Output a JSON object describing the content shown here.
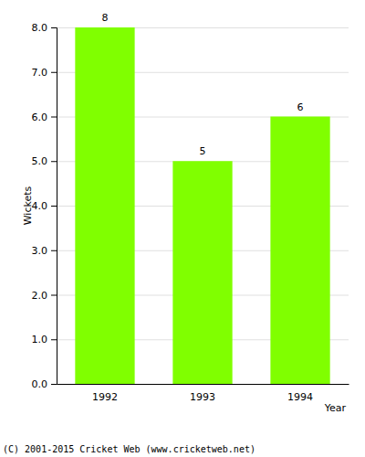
{
  "chart_data": {
    "type": "bar",
    "categories": [
      "1992",
      "1993",
      "1994"
    ],
    "values": [
      8,
      5,
      6
    ],
    "color": "#80ff00",
    "x_label": "Year",
    "y_label": "Wickets",
    "ylim": [
      0,
      8
    ],
    "yticks": [
      {
        "value": 0,
        "label": "0.0"
      },
      {
        "value": 1,
        "label": "1.0"
      },
      {
        "value": 2,
        "label": "2.0"
      },
      {
        "value": 3,
        "label": "3.0"
      },
      {
        "value": 4,
        "label": "4.0"
      },
      {
        "value": 5,
        "label": "5.0"
      },
      {
        "value": 6,
        "label": "6.0"
      },
      {
        "value": 7,
        "label": "7.0"
      },
      {
        "value": 8,
        "label": "8.0"
      }
    ],
    "grid": true,
    "data_labels": true,
    "annotations": [
      "(C) 2001-2015 Cricket Web (www.cricketweb.net)"
    ]
  }
}
